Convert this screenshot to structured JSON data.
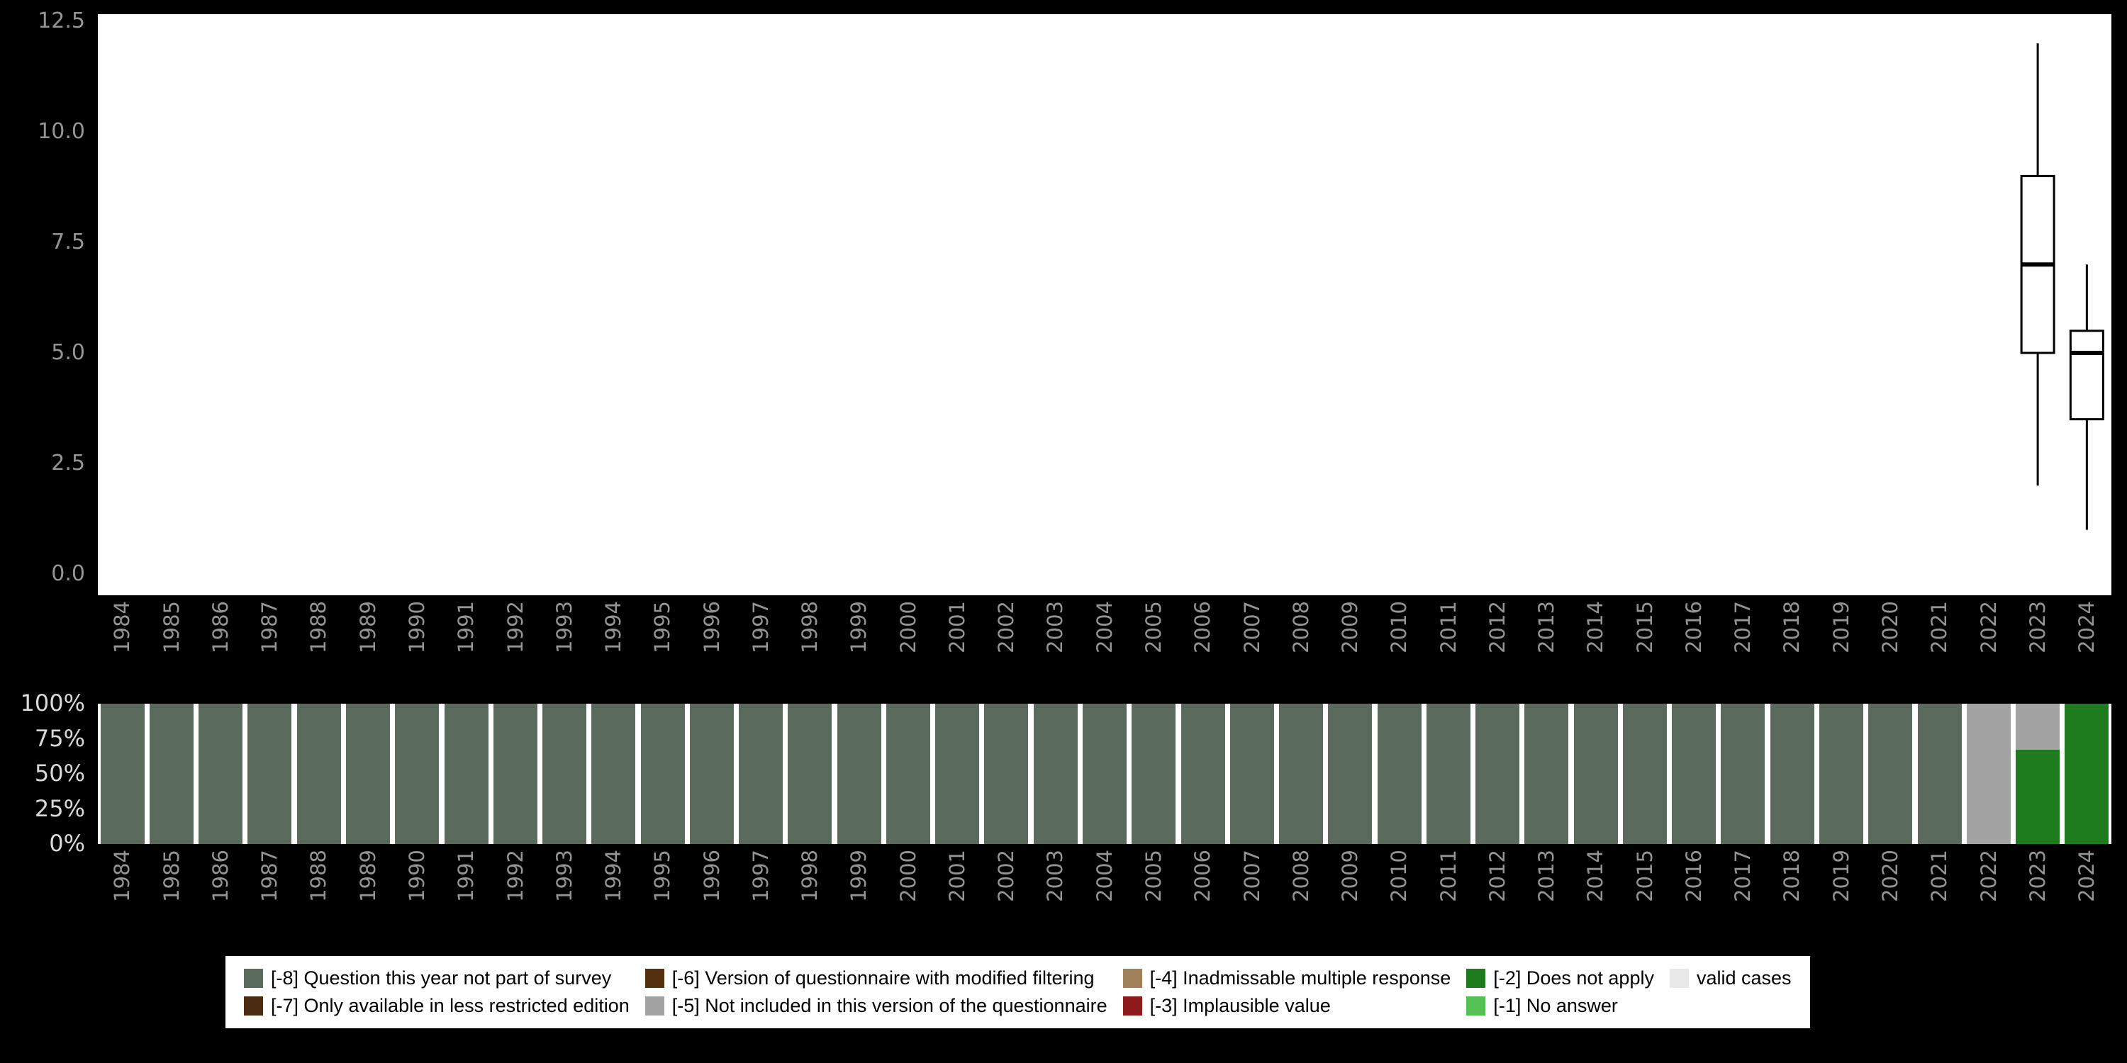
{
  "years": [
    "1984",
    "1985",
    "1986",
    "1987",
    "1988",
    "1989",
    "1990",
    "1991",
    "1992",
    "1993",
    "1994",
    "1995",
    "1996",
    "1997",
    "1998",
    "1999",
    "2000",
    "2001",
    "2002",
    "2003",
    "2004",
    "2005",
    "2006",
    "2007",
    "2008",
    "2009",
    "2010",
    "2011",
    "2012",
    "2013",
    "2014",
    "2015",
    "2016",
    "2017",
    "2018",
    "2019",
    "2020",
    "2021",
    "2022",
    "2023",
    "2024"
  ],
  "axis": {
    "top_yticks": [
      {
        "v": 0,
        "label": "0.0"
      },
      {
        "v": 2.5,
        "label": "2.5"
      },
      {
        "v": 5,
        "label": "5.0"
      },
      {
        "v": 7.5,
        "label": "7.5"
      },
      {
        "v": 10,
        "label": "10.0"
      },
      {
        "v": 12.5,
        "label": "12.5"
      }
    ],
    "pct_yticks": [
      {
        "v": 0,
        "label": "0%"
      },
      {
        "v": 25,
        "label": "25%"
      },
      {
        "v": 50,
        "label": "50%"
      },
      {
        "v": 75,
        "label": "75%"
      },
      {
        "v": 100,
        "label": "100%"
      }
    ]
  },
  "chart_data": [
    {
      "type": "boxplot",
      "title": "",
      "xlabel": "",
      "ylabel": "",
      "ylim": [
        0,
        12.5
      ],
      "grid": false,
      "legend_position": "none",
      "categories": [
        "1984",
        "1985",
        "1986",
        "1987",
        "1988",
        "1989",
        "1990",
        "1991",
        "1992",
        "1993",
        "1994",
        "1995",
        "1996",
        "1997",
        "1998",
        "1999",
        "2000",
        "2001",
        "2002",
        "2003",
        "2004",
        "2005",
        "2006",
        "2007",
        "2008",
        "2009",
        "2010",
        "2011",
        "2012",
        "2013",
        "2014",
        "2015",
        "2016",
        "2017",
        "2018",
        "2019",
        "2020",
        "2021",
        "2022",
        "2023",
        "2024"
      ],
      "boxes": [
        {
          "category": "2023",
          "whisker_low": 2,
          "q1": 5,
          "median": 7,
          "q3": 9,
          "whisker_high": 12
        },
        {
          "category": "2024",
          "whisker_low": 1,
          "q1": 3.5,
          "median": 5,
          "q3": 5.5,
          "whisker_high": 7
        }
      ]
    },
    {
      "type": "bar",
      "stacked": true,
      "unit": "percent",
      "ylim": [
        0,
        100
      ],
      "segment_order": "bottom-to-top",
      "categories": [
        "1984",
        "1985",
        "1986",
        "1987",
        "1988",
        "1989",
        "1990",
        "1991",
        "1992",
        "1993",
        "1994",
        "1995",
        "1996",
        "1997",
        "1998",
        "1999",
        "2000",
        "2001",
        "2002",
        "2003",
        "2004",
        "2005",
        "2006",
        "2007",
        "2008",
        "2009",
        "2010",
        "2011",
        "2012",
        "2013",
        "2014",
        "2015",
        "2016",
        "2017",
        "2018",
        "2019",
        "2020",
        "2021",
        "2022",
        "2023",
        "2024"
      ],
      "bars": [
        {
          "category": "1984",
          "segments": [
            {
              "key": "-8",
              "value": 100
            }
          ]
        },
        {
          "category": "1985",
          "segments": [
            {
              "key": "-8",
              "value": 100
            }
          ]
        },
        {
          "category": "1986",
          "segments": [
            {
              "key": "-8",
              "value": 100
            }
          ]
        },
        {
          "category": "1987",
          "segments": [
            {
              "key": "-8",
              "value": 100
            }
          ]
        },
        {
          "category": "1988",
          "segments": [
            {
              "key": "-8",
              "value": 100
            }
          ]
        },
        {
          "category": "1989",
          "segments": [
            {
              "key": "-8",
              "value": 100
            }
          ]
        },
        {
          "category": "1990",
          "segments": [
            {
              "key": "-8",
              "value": 100
            }
          ]
        },
        {
          "category": "1991",
          "segments": [
            {
              "key": "-8",
              "value": 100
            }
          ]
        },
        {
          "category": "1992",
          "segments": [
            {
              "key": "-8",
              "value": 100
            }
          ]
        },
        {
          "category": "1993",
          "segments": [
            {
              "key": "-8",
              "value": 100
            }
          ]
        },
        {
          "category": "1994",
          "segments": [
            {
              "key": "-8",
              "value": 100
            }
          ]
        },
        {
          "category": "1995",
          "segments": [
            {
              "key": "-8",
              "value": 100
            }
          ]
        },
        {
          "category": "1996",
          "segments": [
            {
              "key": "-8",
              "value": 100
            }
          ]
        },
        {
          "category": "1997",
          "segments": [
            {
              "key": "-8",
              "value": 100
            }
          ]
        },
        {
          "category": "1998",
          "segments": [
            {
              "key": "-8",
              "value": 100
            }
          ]
        },
        {
          "category": "1999",
          "segments": [
            {
              "key": "-8",
              "value": 100
            }
          ]
        },
        {
          "category": "2000",
          "segments": [
            {
              "key": "-8",
              "value": 100
            }
          ]
        },
        {
          "category": "2001",
          "segments": [
            {
              "key": "-8",
              "value": 100
            }
          ]
        },
        {
          "category": "2002",
          "segments": [
            {
              "key": "-8",
              "value": 100
            }
          ]
        },
        {
          "category": "2003",
          "segments": [
            {
              "key": "-8",
              "value": 100
            }
          ]
        },
        {
          "category": "2004",
          "segments": [
            {
              "key": "-8",
              "value": 100
            }
          ]
        },
        {
          "category": "2005",
          "segments": [
            {
              "key": "-8",
              "value": 100
            }
          ]
        },
        {
          "category": "2006",
          "segments": [
            {
              "key": "-8",
              "value": 100
            }
          ]
        },
        {
          "category": "2007",
          "segments": [
            {
              "key": "-8",
              "value": 100
            }
          ]
        },
        {
          "category": "2008",
          "segments": [
            {
              "key": "-8",
              "value": 100
            }
          ]
        },
        {
          "category": "2009",
          "segments": [
            {
              "key": "-8",
              "value": 100
            }
          ]
        },
        {
          "category": "2010",
          "segments": [
            {
              "key": "-8",
              "value": 100
            }
          ]
        },
        {
          "category": "2011",
          "segments": [
            {
              "key": "-8",
              "value": 100
            }
          ]
        },
        {
          "category": "2012",
          "segments": [
            {
              "key": "-8",
              "value": 100
            }
          ]
        },
        {
          "category": "2013",
          "segments": [
            {
              "key": "-8",
              "value": 100
            }
          ]
        },
        {
          "category": "2014",
          "segments": [
            {
              "key": "-8",
              "value": 100
            }
          ]
        },
        {
          "category": "2015",
          "segments": [
            {
              "key": "-8",
              "value": 100
            }
          ]
        },
        {
          "category": "2016",
          "segments": [
            {
              "key": "-8",
              "value": 100
            }
          ]
        },
        {
          "category": "2017",
          "segments": [
            {
              "key": "-8",
              "value": 100
            }
          ]
        },
        {
          "category": "2018",
          "segments": [
            {
              "key": "-8",
              "value": 100
            }
          ]
        },
        {
          "category": "2019",
          "segments": [
            {
              "key": "-8",
              "value": 100
            }
          ]
        },
        {
          "category": "2020",
          "segments": [
            {
              "key": "-8",
              "value": 100
            }
          ]
        },
        {
          "category": "2021",
          "segments": [
            {
              "key": "-8",
              "value": 100
            }
          ]
        },
        {
          "category": "2022",
          "segments": [
            {
              "key": "-5",
              "value": 100
            }
          ]
        },
        {
          "category": "2023",
          "segments": [
            {
              "key": "-2",
              "value": 67
            },
            {
              "key": "-5",
              "value": 33
            }
          ]
        },
        {
          "category": "2024",
          "segments": [
            {
              "key": "-2",
              "value": 100
            }
          ]
        }
      ]
    }
  ],
  "legend": {
    "items": [
      {
        "key": "-8",
        "label": "[-8] Question this year not part of survey",
        "color": "#5a6a5c"
      },
      {
        "key": "-7",
        "label": "[-7] Only available in less restricted edition",
        "color": "#4a2a10"
      },
      {
        "key": "-6",
        "label": "[-6] Version of questionnaire with modified filtering",
        "color": "#54300e"
      },
      {
        "key": "-5",
        "label": "[-5] Not included in this version of the questionnaire",
        "color": "#a3a3a3"
      },
      {
        "key": "-4",
        "label": "[-4] Inadmissable multiple response",
        "color": "#a08159"
      },
      {
        "key": "-3",
        "label": "[-3] Implausible value",
        "color": "#8e1b1b"
      },
      {
        "key": "-2",
        "label": "[-2] Does not apply",
        "color": "#1e7b1e"
      },
      {
        "key": "-1",
        "label": "[-1] No answer",
        "color": "#55c155"
      },
      {
        "key": "valid",
        "label": "valid cases",
        "color": "#e8e8e8"
      }
    ]
  },
  "colors": {
    "background": "#000000",
    "panel": "#ffffff",
    "axis_text": "#949494",
    "pct_text": "#d9d9d9",
    "box_stroke": "#000000",
    "box_fill": "#ffffff"
  }
}
